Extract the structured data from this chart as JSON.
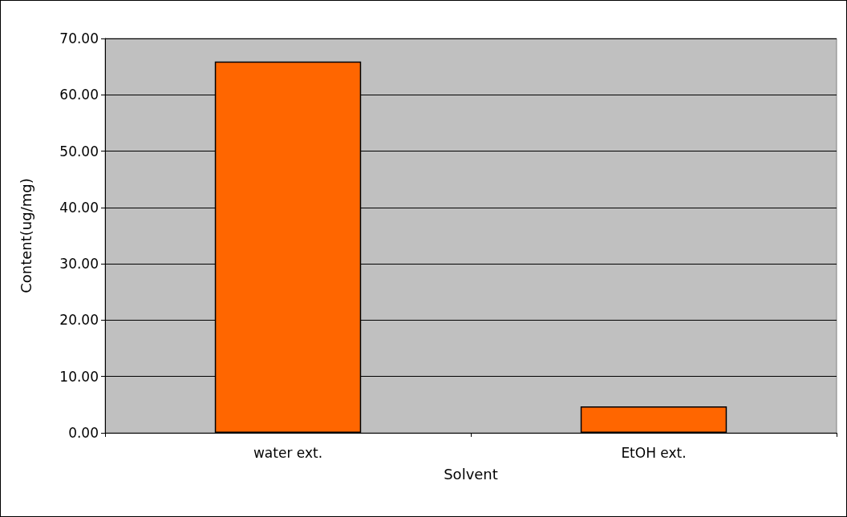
{
  "chart_data": {
    "type": "bar",
    "xlabel": "Solvent",
    "ylabel": "Content(ug/mg)",
    "categories": [
      "water ext.",
      "EtOH ext."
    ],
    "values": [
      65.9,
      4.7
    ],
    "color": "#ff6600",
    "ylim": [
      0,
      70
    ],
    "yticks": [
      {
        "value": 0,
        "label": "0.00"
      },
      {
        "value": 10,
        "label": "10.00"
      },
      {
        "value": 20,
        "label": "20.00"
      },
      {
        "value": 30,
        "label": "30.00"
      },
      {
        "value": 40,
        "label": "40.00"
      },
      {
        "value": 50,
        "label": "50.00"
      },
      {
        "value": 60,
        "label": "60.00"
      },
      {
        "value": 70,
        "label": "70.00"
      }
    ],
    "grid": "y"
  }
}
